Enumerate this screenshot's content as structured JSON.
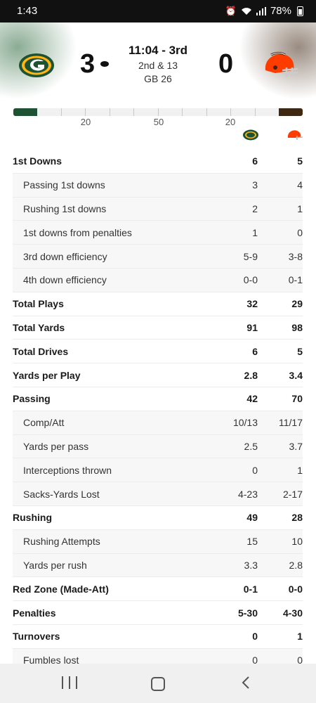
{
  "status_bar": {
    "time": "1:43",
    "battery": "78%"
  },
  "game": {
    "home_score": "3",
    "away_score": "0",
    "clock": "11:04 - 3rd",
    "down_distance": "2nd & 13",
    "ball_spot": "GB 26"
  },
  "field": {
    "yard_labels": [
      "20",
      "50",
      "20"
    ]
  },
  "colors": {
    "home": "#1d5233",
    "home_accent": "#ffb612",
    "away": "#ff3c00",
    "away_brown": "#3f2811"
  },
  "stats": [
    {
      "label": "1st Downs",
      "home": "6",
      "away": "5",
      "type": "main"
    },
    {
      "label": "Passing 1st downs",
      "home": "3",
      "away": "4",
      "type": "sub"
    },
    {
      "label": "Rushing 1st downs",
      "home": "2",
      "away": "1",
      "type": "sub"
    },
    {
      "label": "1st downs from penalties",
      "home": "1",
      "away": "0",
      "type": "sub"
    },
    {
      "label": "3rd down efficiency",
      "home": "5-9",
      "away": "3-8",
      "type": "sub"
    },
    {
      "label": "4th down efficiency",
      "home": "0-0",
      "away": "0-1",
      "type": "sub"
    },
    {
      "label": "Total Plays",
      "home": "32",
      "away": "29",
      "type": "main"
    },
    {
      "label": "Total Yards",
      "home": "91",
      "away": "98",
      "type": "main"
    },
    {
      "label": "Total Drives",
      "home": "6",
      "away": "5",
      "type": "main"
    },
    {
      "label": "Yards per Play",
      "home": "2.8",
      "away": "3.4",
      "type": "main"
    },
    {
      "label": "Passing",
      "home": "42",
      "away": "70",
      "type": "main"
    },
    {
      "label": "Comp/Att",
      "home": "10/13",
      "away": "11/17",
      "type": "sub"
    },
    {
      "label": "Yards per pass",
      "home": "2.5",
      "away": "3.7",
      "type": "sub"
    },
    {
      "label": "Interceptions thrown",
      "home": "0",
      "away": "1",
      "type": "sub"
    },
    {
      "label": "Sacks-Yards Lost",
      "home": "4-23",
      "away": "2-17",
      "type": "sub"
    },
    {
      "label": "Rushing",
      "home": "49",
      "away": "28",
      "type": "main"
    },
    {
      "label": "Rushing Attempts",
      "home": "15",
      "away": "10",
      "type": "sub"
    },
    {
      "label": "Yards per rush",
      "home": "3.3",
      "away": "2.8",
      "type": "sub"
    },
    {
      "label": "Red Zone (Made-Att)",
      "home": "0-1",
      "away": "0-0",
      "type": "main"
    },
    {
      "label": "Penalties",
      "home": "5-30",
      "away": "4-30",
      "type": "main"
    },
    {
      "label": "Turnovers",
      "home": "0",
      "away": "1",
      "type": "main"
    },
    {
      "label": "Fumbles lost",
      "home": "0",
      "away": "0",
      "type": "sub"
    }
  ],
  "icons": {
    "home_logo": "packers-logo",
    "away_logo": "browns-helmet-logo",
    "nav": [
      "recent-apps-icon",
      "home-icon",
      "back-icon"
    ]
  }
}
